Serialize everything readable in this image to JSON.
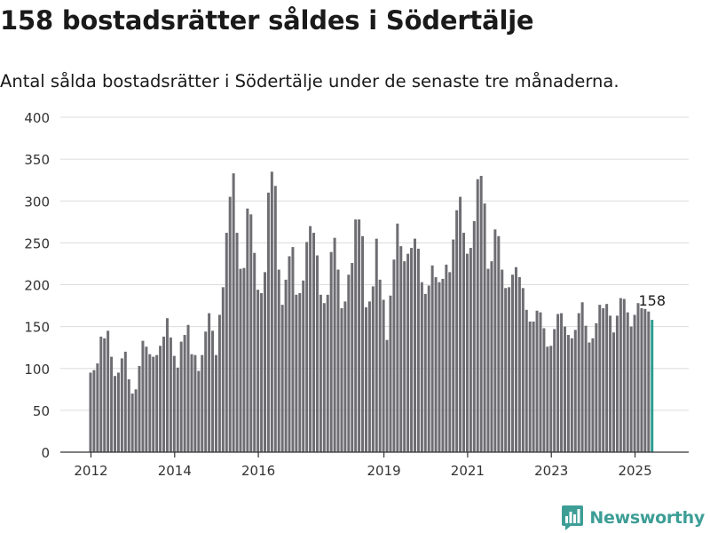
{
  "header": {
    "title": "158 bostadsrätter såldes i Södertälje",
    "subtitle": "Antal sålda bostadsrätter i Södertälje under de senaste tre månaderna."
  },
  "brand": {
    "name": "Newsworthy",
    "icon": "newsworthy-logo-icon",
    "color": "#3d9e96"
  },
  "chart_data": {
    "type": "bar",
    "title": "158 bostadsrätter såldes i Södertälje",
    "subtitle": "Antal sålda bostadsrätter i Södertälje under de senaste tre månaderna.",
    "xlabel": "",
    "ylabel": "",
    "ylim": [
      0,
      400
    ],
    "yticks": [
      0,
      50,
      100,
      150,
      200,
      250,
      300,
      350,
      400
    ],
    "xticks": [
      "2012",
      "2014",
      "2016",
      "2019",
      "2021",
      "2023",
      "2025"
    ],
    "grid": true,
    "bar_color": "#6e6d72",
    "highlight_color": "#2a9d8f",
    "period": "rolling 3 months, monthly",
    "annotation": {
      "text": "158",
      "index": "last"
    },
    "values": [
      95,
      98,
      106,
      138,
      136,
      145,
      114,
      91,
      95,
      112,
      120,
      87,
      70,
      75,
      103,
      133,
      126,
      117,
      114,
      116,
      127,
      138,
      160,
      137,
      115,
      101,
      132,
      140,
      152,
      117,
      116,
      97,
      116,
      144,
      166,
      145,
      116,
      164,
      197,
      262,
      305,
      333,
      262,
      219,
      220,
      291,
      284,
      238,
      194,
      190,
      215,
      310,
      335,
      318,
      218,
      176,
      206,
      234,
      245,
      188,
      190,
      205,
      251,
      270,
      262,
      235,
      188,
      178,
      188,
      239,
      256,
      218,
      172,
      180,
      212,
      226,
      278,
      278,
      258,
      173,
      180,
      198,
      255,
      206,
      182,
      134,
      187,
      230,
      273,
      246,
      228,
      237,
      244,
      255,
      243,
      203,
      189,
      199,
      223,
      209,
      203,
      207,
      224,
      215,
      254,
      289,
      305,
      262,
      237,
      244,
      276,
      326,
      330,
      297,
      219,
      228,
      266,
      258,
      218,
      196,
      197,
      212,
      221,
      209,
      196,
      170,
      156,
      156,
      169,
      167,
      148,
      126,
      127,
      147,
      165,
      166,
      150,
      140,
      136,
      146,
      166,
      179,
      151,
      131,
      136,
      154,
      176,
      172,
      177,
      163,
      143,
      163,
      184,
      183,
      167,
      150,
      164,
      178,
      172,
      171,
      168,
      158
    ]
  }
}
